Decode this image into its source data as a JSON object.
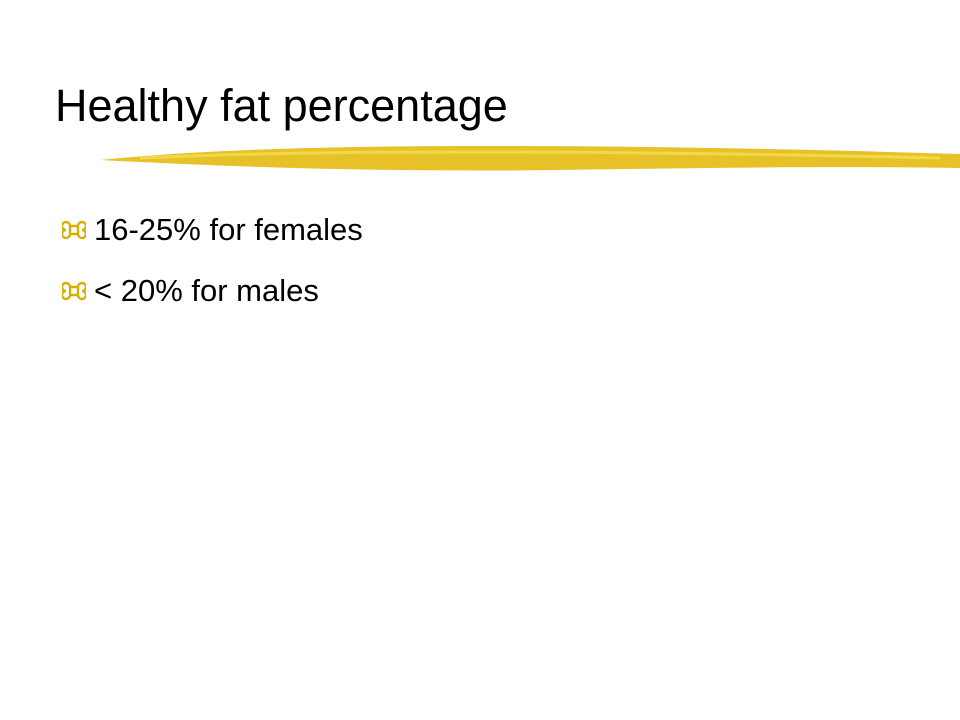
{
  "slide": {
    "title": "Healthy fat percentage",
    "bullets": [
      "16-25% for females",
      "< 20% for males"
    ]
  }
}
